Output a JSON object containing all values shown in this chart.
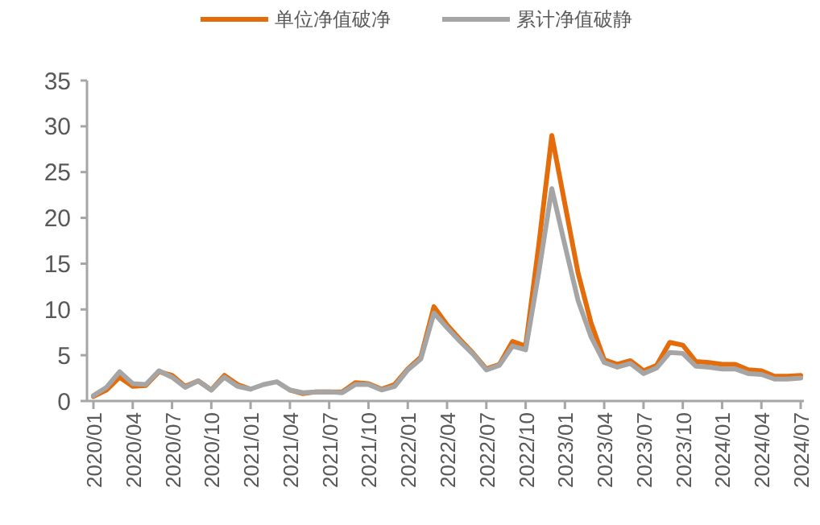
{
  "chart_data": {
    "type": "line",
    "categories": [
      "2020/01",
      null,
      null,
      "2020/04",
      null,
      null,
      "2020/07",
      null,
      null,
      "2020/10",
      null,
      null,
      "2021/01",
      null,
      null,
      "2021/04",
      null,
      null,
      "2021/07",
      null,
      null,
      "2021/10",
      null,
      null,
      "2022/01",
      null,
      null,
      "2022/04",
      null,
      null,
      "2022/07",
      null,
      null,
      "2022/10",
      null,
      null,
      "2023/01",
      null,
      null,
      "2023/04",
      null,
      null,
      "2023/07",
      null,
      null,
      "2023/10",
      null,
      null,
      "2024/01",
      null,
      null,
      "2024/04",
      null,
      null,
      "2024/07"
    ],
    "series": [
      {
        "name": "单位净值破净",
        "color": "#e46c0a",
        "values": [
          0.5,
          1.2,
          2.6,
          1.6,
          1.7,
          3.2,
          2.8,
          1.6,
          2.2,
          1.2,
          2.8,
          1.8,
          1.3,
          null,
          null,
          1.2,
          0.8,
          1.0,
          1.0,
          1.0,
          2.0,
          1.9,
          1.3,
          1.8,
          3.5,
          4.8,
          10.3,
          8.3,
          6.7,
          5.2,
          3.5,
          4.0,
          6.5,
          6.0,
          17,
          29.0,
          21.5,
          14,
          8.5,
          4.5,
          4.0,
          4.4,
          3.3,
          3.9,
          6.4,
          6.1,
          4.3,
          4.2,
          4.0,
          4.0,
          3.4,
          3.3,
          2.7,
          2.7,
          2.8
        ]
      },
      {
        "name": "累计净值破静",
        "color": "#a5a5a5",
        "values": [
          0.6,
          1.5,
          3.2,
          1.9,
          1.8,
          3.3,
          2.6,
          1.5,
          2.2,
          1.2,
          2.6,
          1.6,
          1.3,
          1.8,
          2.1,
          1.2,
          0.9,
          1.0,
          1.0,
          0.9,
          1.8,
          1.8,
          1.2,
          1.6,
          3.4,
          4.6,
          9.6,
          8.0,
          6.5,
          5.1,
          3.4,
          3.9,
          6.0,
          5.6,
          14,
          23.2,
          17,
          11,
          7,
          4.2,
          3.7,
          4.1,
          3.0,
          3.6,
          5.3,
          5.2,
          3.8,
          3.7,
          3.5,
          3.5,
          3.0,
          2.9,
          2.4,
          2.4,
          2.5
        ]
      }
    ],
    "ylim": [
      0,
      35
    ],
    "yticks": [
      0,
      5,
      10,
      15,
      20,
      25,
      30,
      35
    ],
    "legend": "top",
    "grid": false
  }
}
